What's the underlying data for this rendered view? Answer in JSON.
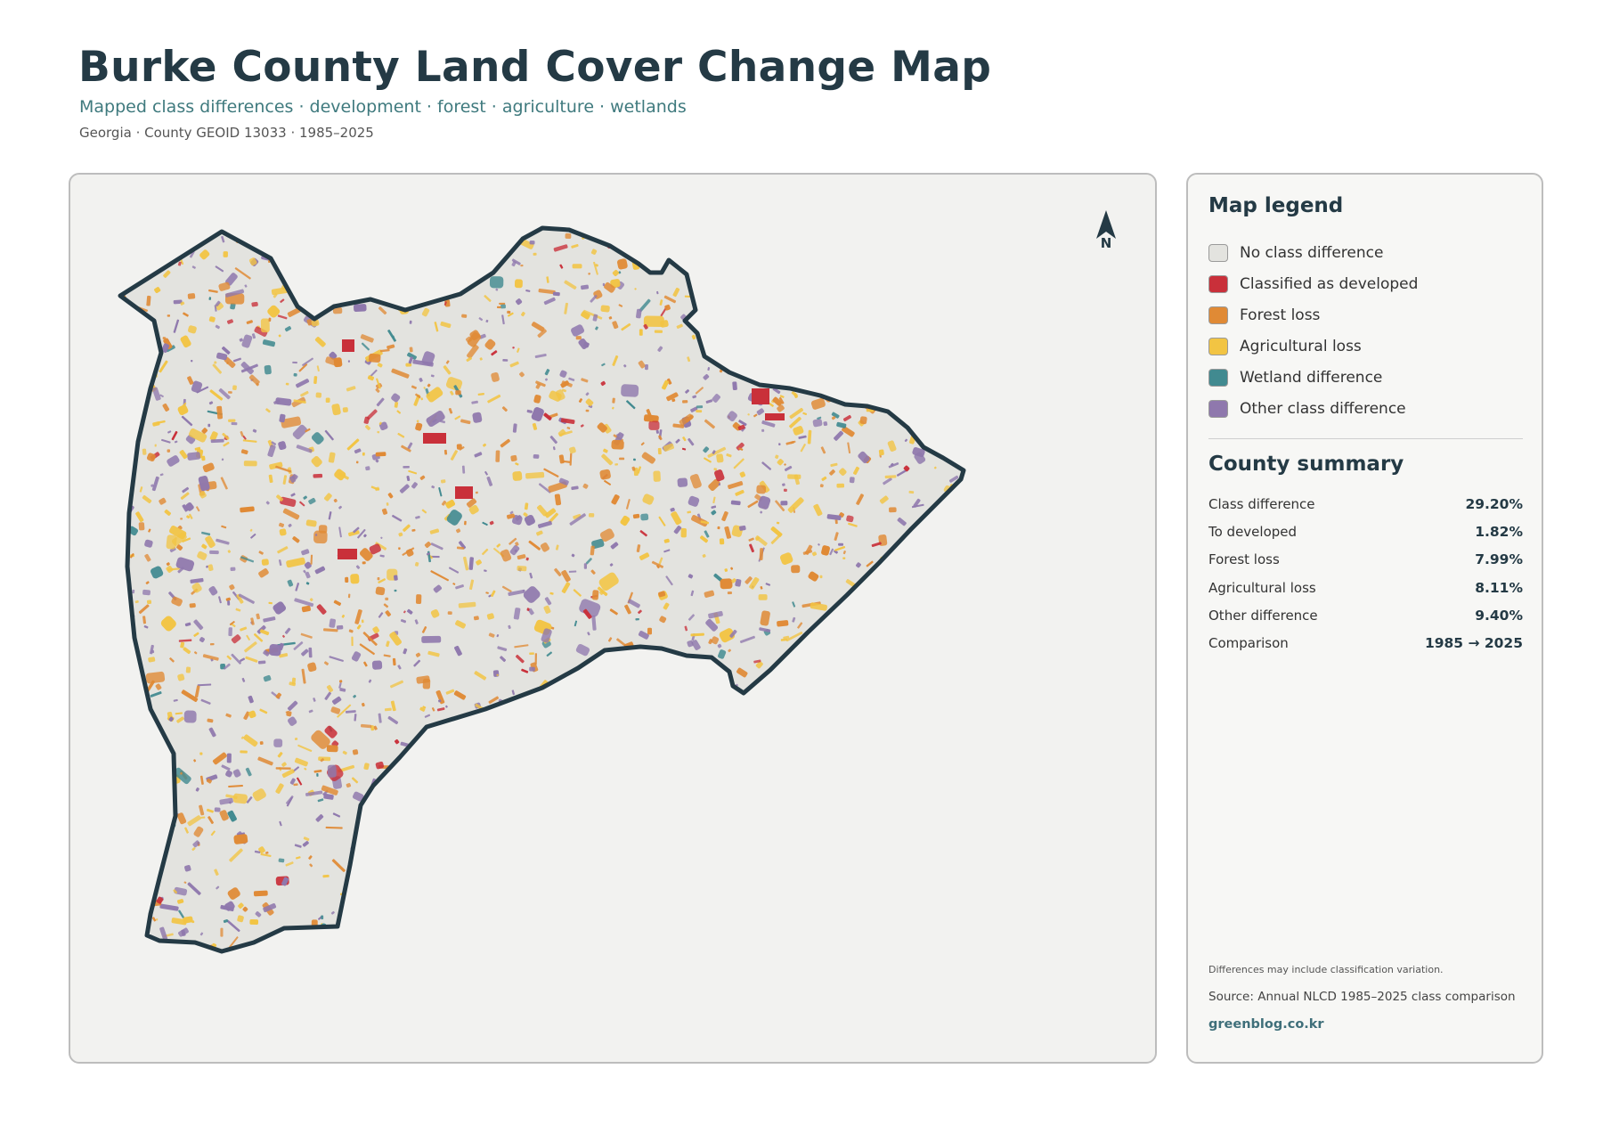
{
  "header": {
    "title": "Burke County Land Cover Change Map",
    "subtitle": "Mapped class differences · development · forest · agriculture · wetlands",
    "meta": "Georgia · County GEOID 13033 · 1985–2025"
  },
  "map": {
    "north_label": "N",
    "county_fill": "#e3e3df",
    "boundary_color": "#243a45"
  },
  "legend": {
    "title": "Map legend",
    "items": [
      {
        "label": "No class difference",
        "color": "#e3e3df"
      },
      {
        "label": "Classified as developed",
        "color": "#c9303a"
      },
      {
        "label": "Forest loss",
        "color": "#e08a35"
      },
      {
        "label": "Agricultural loss",
        "color": "#f2c443"
      },
      {
        "label": "Wetland difference",
        "color": "#418a90"
      },
      {
        "label": "Other class difference",
        "color": "#8f78ad"
      }
    ]
  },
  "summary": {
    "title": "County summary",
    "rows": [
      {
        "label": "Class difference",
        "value": "29.20%"
      },
      {
        "label": "To developed",
        "value": "1.82%"
      },
      {
        "label": "Forest loss",
        "value": "7.99%"
      },
      {
        "label": "Agricultural loss",
        "value": "8.11%"
      },
      {
        "label": "Other difference",
        "value": "9.40%"
      },
      {
        "label": "Comparison",
        "value": "1985 → 2025"
      }
    ]
  },
  "footer": {
    "note": "Differences may include classification variation.",
    "source": "Source: Annual NLCD 1985–2025 class comparison",
    "site": "greenblog.co.kr"
  }
}
